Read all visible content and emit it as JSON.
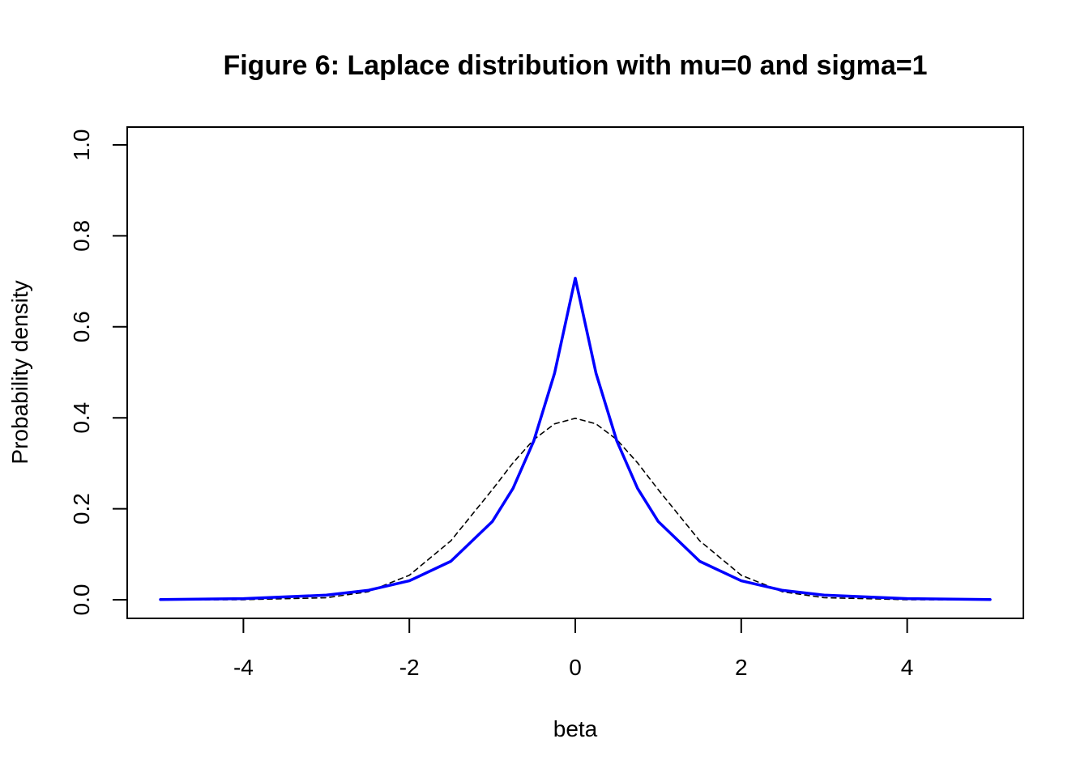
{
  "chart_data": {
    "type": "line",
    "title": "Figure 6: Laplace distribution with mu=0 and sigma=1",
    "xlabel": "beta",
    "ylabel": "Probability density",
    "xlim": [
      -5,
      5
    ],
    "ylim": [
      0,
      1
    ],
    "x_ticks": [
      "-4",
      "-2",
      "0",
      "2",
      "4"
    ],
    "y_ticks": [
      "0.0",
      "0.2",
      "0.4",
      "0.6",
      "0.8",
      "1.0"
    ],
    "grid": false,
    "series": [
      {
        "style": "solid",
        "color": "#0000ff",
        "x": [
          -5,
          -4,
          -3,
          -2.5,
          -2,
          -1.5,
          -1,
          -0.75,
          -0.5,
          -0.25,
          0,
          0.25,
          0.5,
          0.75,
          1,
          1.5,
          2,
          2.5,
          3,
          4,
          5
        ],
        "y": [
          0.0006,
          0.0025,
          0.0101,
          0.0206,
          0.0417,
          0.0846,
          0.1719,
          0.2451,
          0.3492,
          0.4979,
          0.7071,
          0.4979,
          0.3492,
          0.2451,
          0.1719,
          0.0846,
          0.0417,
          0.0206,
          0.0101,
          0.0025,
          0.0006
        ]
      },
      {
        "style": "dashed",
        "color": "#000000",
        "x": [
          -5,
          -4,
          -3,
          -2.5,
          -2,
          -1.5,
          -1,
          -0.75,
          -0.5,
          -0.25,
          0,
          0.25,
          0.5,
          0.75,
          1,
          1.5,
          2,
          2.5,
          3,
          4,
          5
        ],
        "y": [
          0.0,
          0.0001,
          0.0044,
          0.0175,
          0.054,
          0.1295,
          0.242,
          0.3011,
          0.3521,
          0.3867,
          0.3989,
          0.3867,
          0.3521,
          0.3011,
          0.242,
          0.1295,
          0.054,
          0.0175,
          0.0044,
          0.0001,
          0.0
        ]
      }
    ]
  }
}
